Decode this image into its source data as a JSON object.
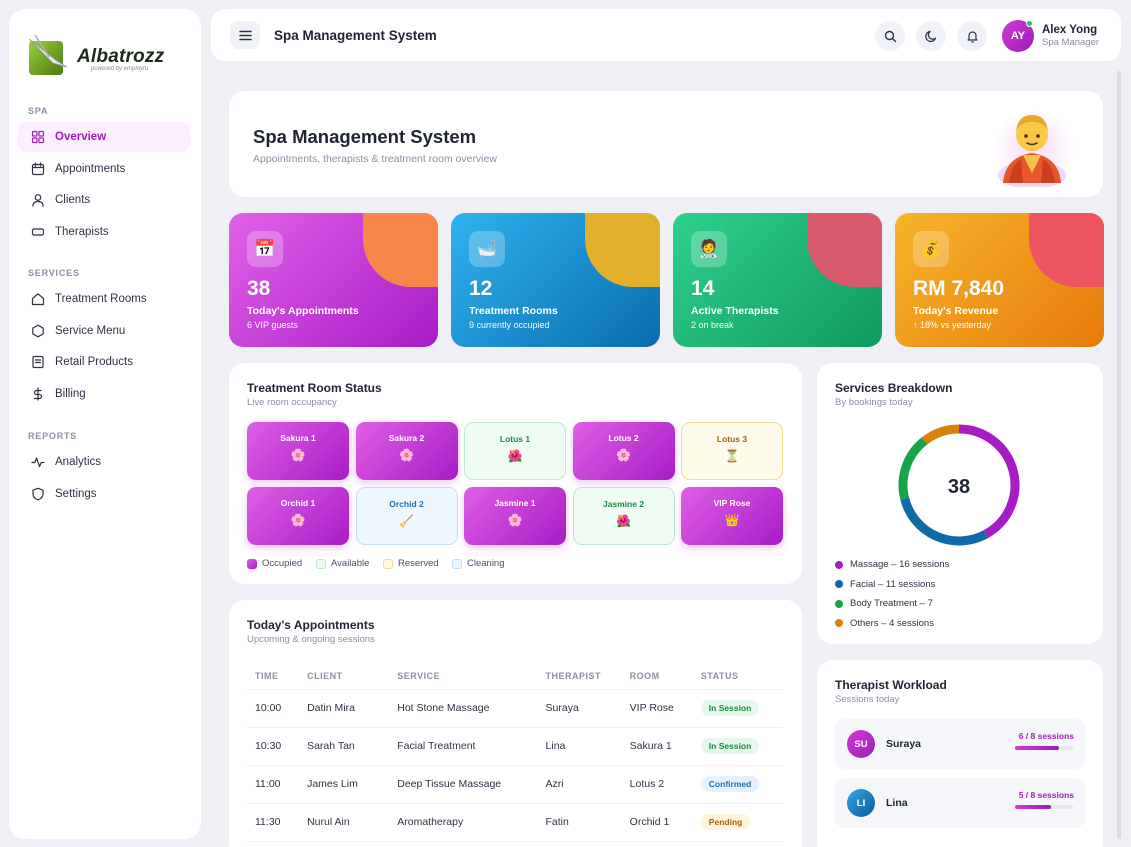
{
  "brand": {
    "name": "Albatrozz",
    "tagline": "powered by employtu"
  },
  "sidebar": {
    "sections": [
      {
        "title": "SPA",
        "items": [
          {
            "label": "Overview",
            "icon": "grid-icon",
            "active": true
          },
          {
            "label": "Appointments",
            "icon": "calendar-icon"
          },
          {
            "label": "Clients",
            "icon": "user-icon"
          },
          {
            "label": "Therapists",
            "icon": "card-icon"
          }
        ]
      },
      {
        "title": "SERVICES",
        "items": [
          {
            "label": "Treatment Rooms",
            "icon": "home-icon"
          },
          {
            "label": "Service Menu",
            "icon": "hexagon-icon"
          },
          {
            "label": "Retail Products",
            "icon": "receipt-icon"
          },
          {
            "label": "Billing",
            "icon": "dollar-icon"
          }
        ]
      },
      {
        "title": "REPORTS",
        "items": [
          {
            "label": "Analytics",
            "icon": "activity-icon"
          },
          {
            "label": "Settings",
            "icon": "shield-icon"
          }
        ]
      }
    ]
  },
  "header": {
    "title": "Spa Management System",
    "user": {
      "initials": "AY",
      "name": "Alex Yong",
      "role": "Spa Manager"
    }
  },
  "hero": {
    "title": "Spa Management System",
    "subtitle": "Appointments, therapists & treatment room overview",
    "emoji": "💆"
  },
  "stats": [
    {
      "value": "38",
      "label": "Today's Appointments",
      "sub": "6 VIP guests",
      "icon": "📅",
      "colors": [
        "#e061e8",
        "#a81cc6"
      ],
      "blob": "#f5874a"
    },
    {
      "value": "12",
      "label": "Treatment Rooms",
      "sub": "9 currently occupied",
      "icon": "🛁",
      "colors": [
        "#2fb2ee",
        "#0a6cae"
      ],
      "blob": "#e2b02a"
    },
    {
      "value": "14",
      "label": "Active Therapists",
      "sub": "2 on break",
      "icon": "🧑‍⚕️",
      "colors": [
        "#2fd08c",
        "#109a5e"
      ],
      "blob": "#d75b6a"
    },
    {
      "value": "RM 7,840",
      "label": "Today's Revenue",
      "sub": "↑ 18% vs yesterday",
      "icon": "💰",
      "colors": [
        "#f6b42a",
        "#e77b0c"
      ],
      "blob": "#ee5561"
    }
  ],
  "rooms": {
    "title": "Treatment Room Status",
    "subtitle": "Live room occupancy",
    "items": [
      {
        "name": "Sakura 1",
        "status": "occ",
        "emoji": "🌸"
      },
      {
        "name": "Sakura 2",
        "status": "occ",
        "emoji": "🌸"
      },
      {
        "name": "Lotus 1",
        "status": "avail",
        "emoji": "🌺"
      },
      {
        "name": "Lotus 2",
        "status": "occ",
        "emoji": "🌸"
      },
      {
        "name": "Lotus 3",
        "status": "res",
        "emoji": "⏳"
      },
      {
        "name": "Orchid 1",
        "status": "occ",
        "emoji": "🌸"
      },
      {
        "name": "Orchid 2",
        "status": "cln",
        "emoji": "🧹"
      },
      {
        "name": "Jasmine 1",
        "status": "occ",
        "emoji": "🌸"
      },
      {
        "name": "Jasmine 2",
        "status": "avail",
        "emoji": "🌺"
      },
      {
        "name": "VIP Rose",
        "status": "occ",
        "emoji": "👑"
      }
    ],
    "legend": [
      {
        "label": "Occupied",
        "key": "occ"
      },
      {
        "label": "Available",
        "key": "avail"
      },
      {
        "label": "Reserved",
        "key": "res"
      },
      {
        "label": "Cleaning",
        "key": "cln"
      }
    ]
  },
  "appointments": {
    "title": "Today's Appointments",
    "subtitle": "Upcoming & ongoing sessions",
    "columns": [
      "TIME",
      "CLIENT",
      "SERVICE",
      "THERAPIST",
      "ROOM",
      "STATUS"
    ],
    "rows": [
      {
        "time": "10:00",
        "client": "Datin Mira",
        "service": "Hot Stone Massage",
        "therapist": "Suraya",
        "room": "VIP Rose",
        "status": "In Session",
        "kind": "session"
      },
      {
        "time": "10:30",
        "client": "Sarah Tan",
        "service": "Facial Treatment",
        "therapist": "Lina",
        "room": "Sakura 1",
        "status": "In Session",
        "kind": "session"
      },
      {
        "time": "11:00",
        "client": "James Lim",
        "service": "Deep Tissue Massage",
        "therapist": "Azri",
        "room": "Lotus 2",
        "status": "Confirmed",
        "kind": "confirmed"
      },
      {
        "time": "11:30",
        "client": "Nurul Ain",
        "service": "Aromatherapy",
        "therapist": "Fatin",
        "room": "Orchid 1",
        "status": "Pending",
        "kind": "pending"
      }
    ]
  },
  "breakdown": {
    "title": "Services Breakdown",
    "subtitle": "By bookings today",
    "total": "38",
    "items": [
      {
        "label": "Massage – 16 sessions",
        "value": 16,
        "color": "#a81cc6"
      },
      {
        "label": "Facial – 11 sessions",
        "value": 11,
        "color": "#0f6aa8"
      },
      {
        "label": "Body Treatment – 7",
        "value": 7,
        "color": "#16a34a"
      },
      {
        "label": "Others – 4 sessions",
        "value": 4,
        "color": "#d9820b"
      }
    ]
  },
  "workload": {
    "title": "Therapist Workload",
    "subtitle": "Sessions today",
    "items": [
      {
        "initials": "SU",
        "name": "Suraya",
        "count": "6 / 8 sessions",
        "fraction": 0.75,
        "color": [
          "#d23ad8",
          "#9a1eb8"
        ]
      },
      {
        "initials": "LI",
        "name": "Lina",
        "count": "5 / 8 sessions",
        "fraction": 0.625,
        "color": [
          "#2fa6e6",
          "#0a5c96"
        ]
      }
    ]
  }
}
